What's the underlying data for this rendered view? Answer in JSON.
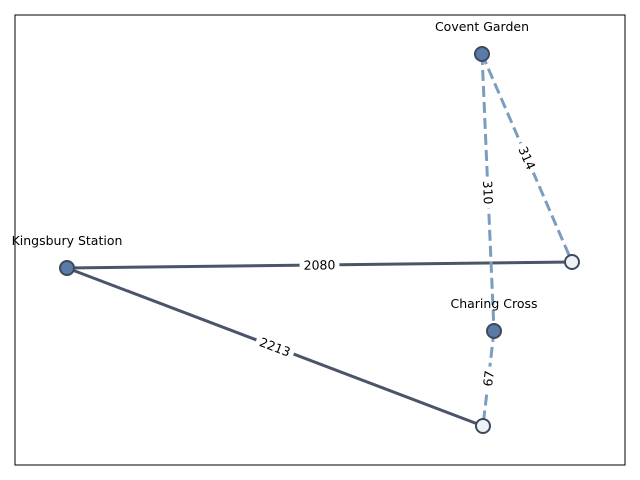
{
  "colors": {
    "solid_edge": "#4a5568",
    "dashed_edge": "#7b9dbf",
    "filled_node": "#5a7aa8",
    "open_node": "#f0f1f6",
    "node_stroke": "#3d4a5c",
    "frame": "#000000"
  },
  "nodes": [
    {
      "id": "kingsbury",
      "label": "Kingsbury Station",
      "style": "filled"
    },
    {
      "id": "covent",
      "label": "Covent Garden",
      "style": "filled"
    },
    {
      "id": "charing",
      "label": "Charing Cross",
      "style": "filled"
    },
    {
      "id": "junction_right",
      "label": "",
      "style": "open"
    },
    {
      "id": "junction_bottom",
      "label": "",
      "style": "open"
    }
  ],
  "edges": [
    {
      "id": "e1",
      "from": "kingsbury",
      "to": "junction_right",
      "weight": "2080",
      "style": "solid"
    },
    {
      "id": "e2",
      "from": "kingsbury",
      "to": "junction_bottom",
      "weight": "2213",
      "style": "solid"
    },
    {
      "id": "e3",
      "from": "covent",
      "to": "charing",
      "weight": "310",
      "style": "dashed"
    },
    {
      "id": "e4",
      "from": "covent",
      "to": "junction_right",
      "weight": "314",
      "style": "dashed"
    },
    {
      "id": "e5",
      "from": "charing",
      "to": "junction_bottom",
      "weight": "67",
      "style": "dashed"
    }
  ]
}
